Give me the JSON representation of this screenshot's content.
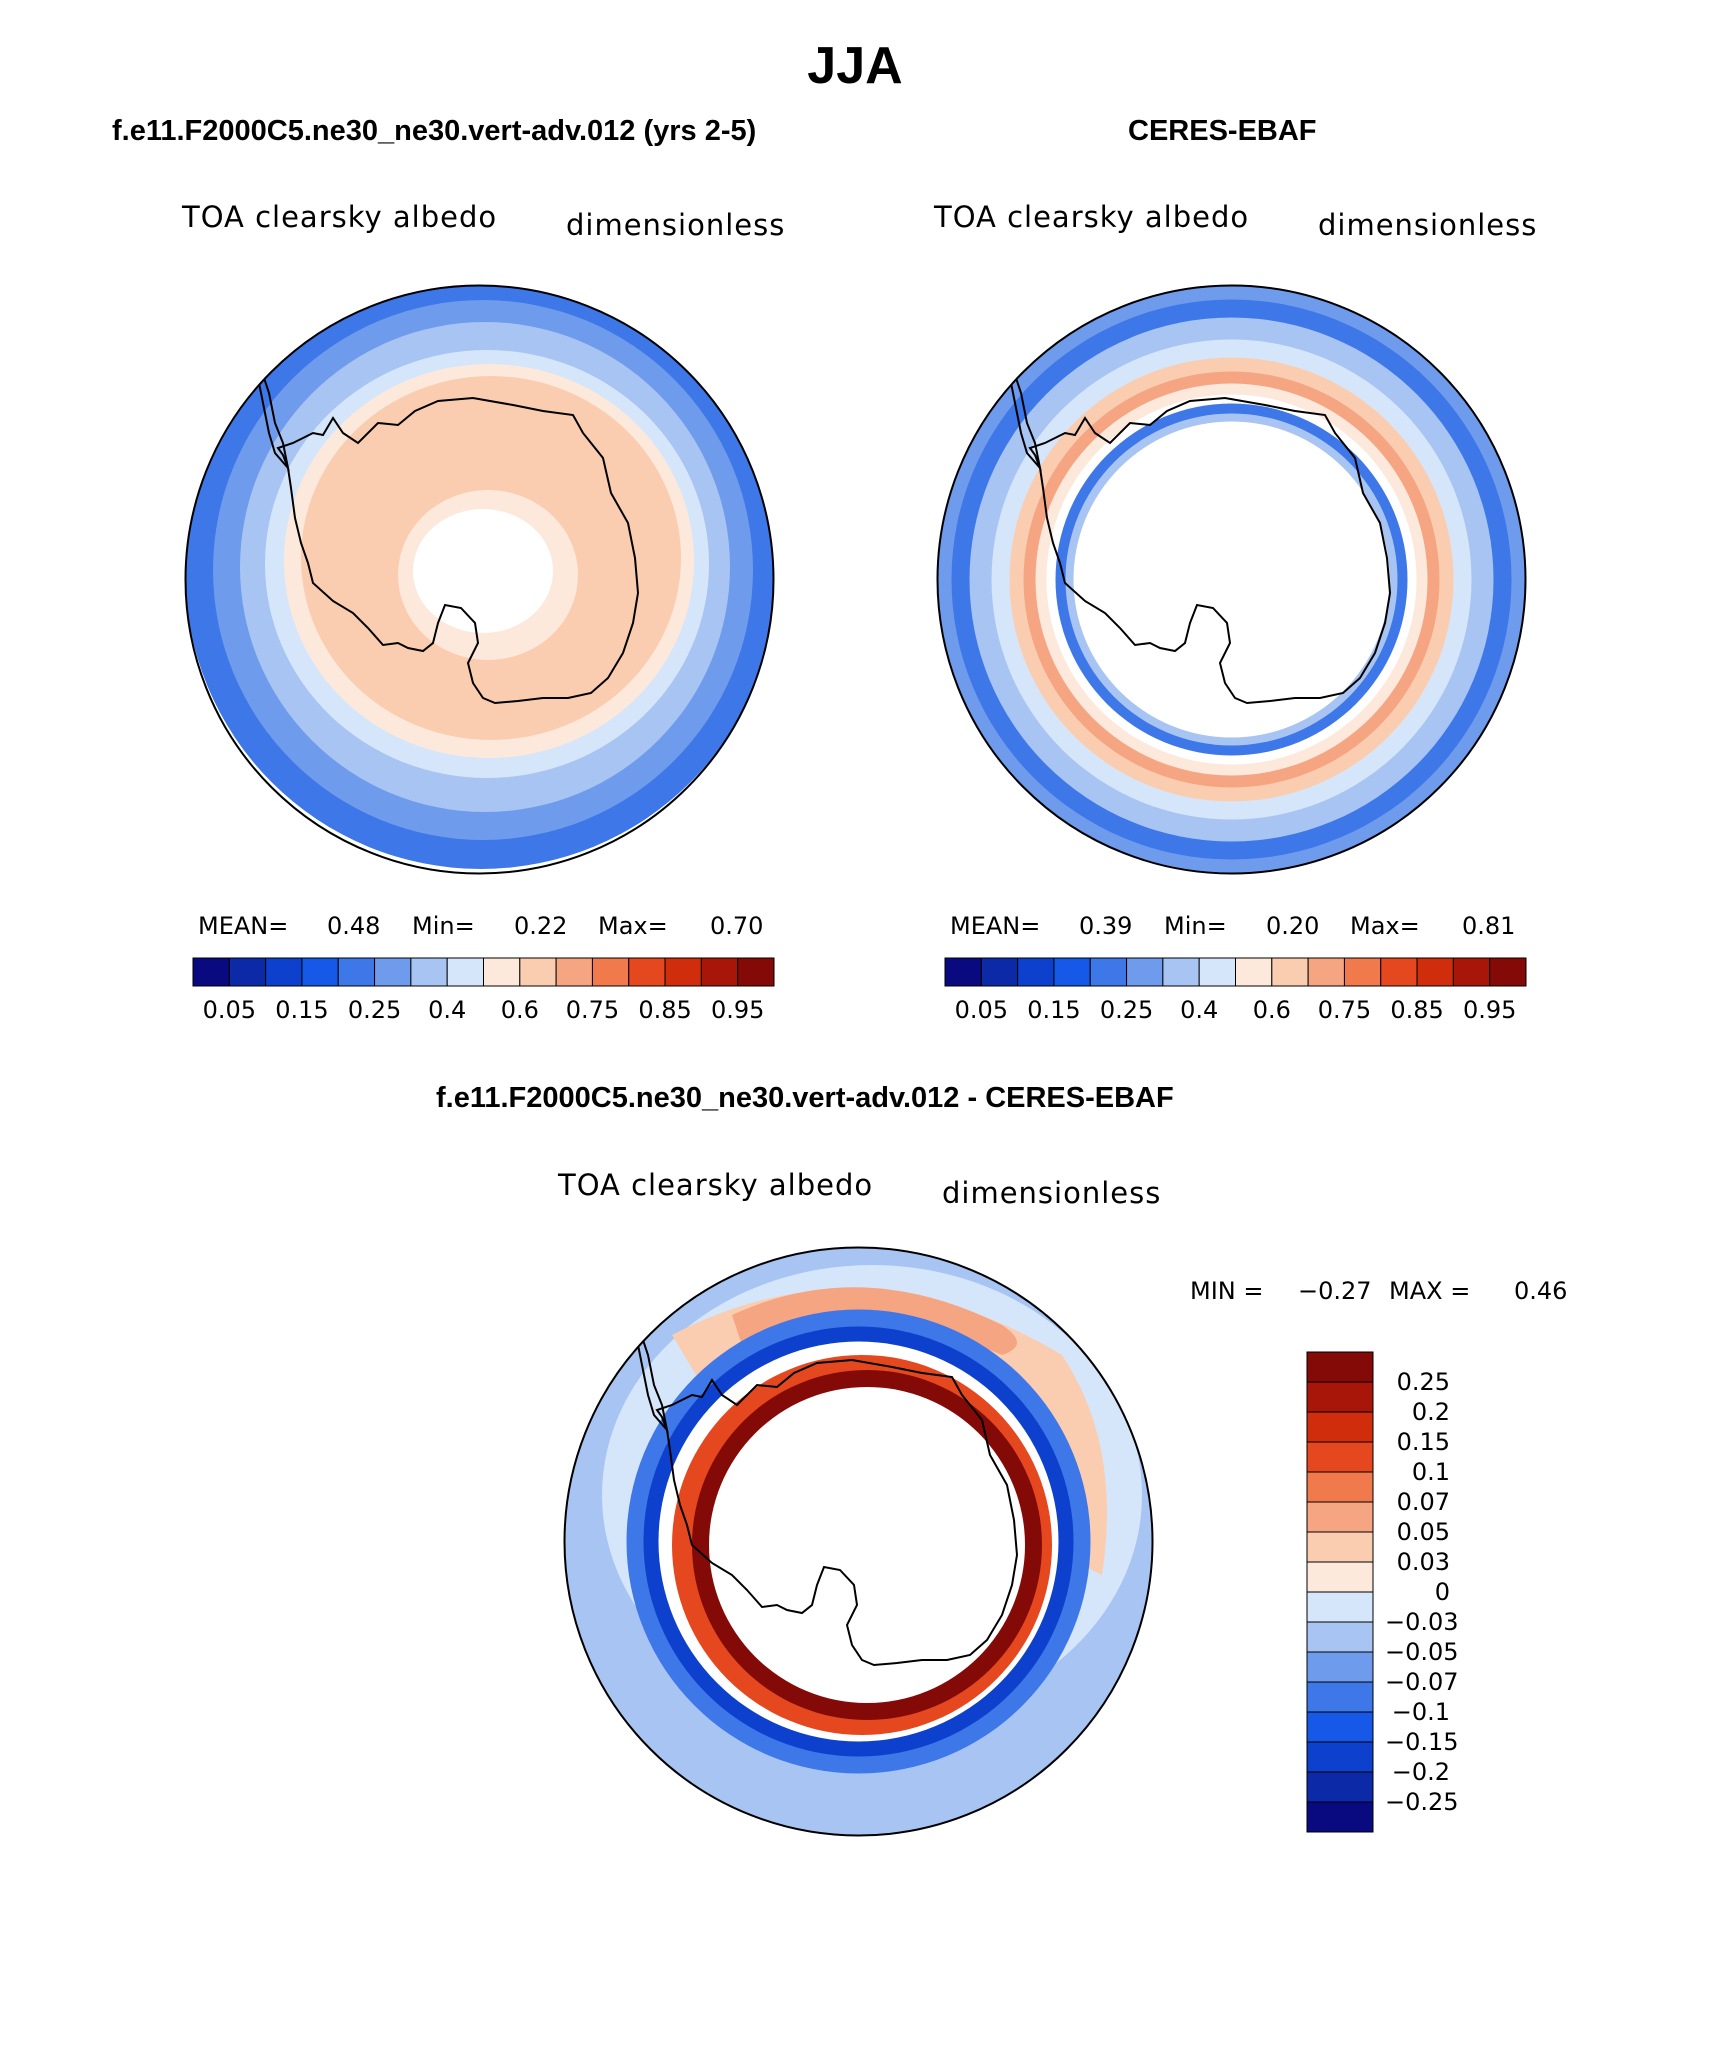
{
  "figure": {
    "season": "JJA",
    "colors": {
      "scale": [
        "#0a0a80",
        "#0c2aa8",
        "#0d40cc",
        "#1659e8",
        "#3d77e8",
        "#6e9bec",
        "#a8c4f2",
        "#d5e6fb",
        "#fde9dc",
        "#fbcdb0",
        "#f6a583",
        "#f07a4c",
        "#e5471f",
        "#cf2d0b",
        "#a8160a",
        "#840a08"
      ],
      "diff_scale": [
        "#0a0a80",
        "#0c2aa8",
        "#0d40cc",
        "#1659e8",
        "#3d77e8",
        "#6e9bec",
        "#a8c4f2",
        "#d5e6fb",
        "#fde9dc",
        "#fbcdb0",
        "#f6a583",
        "#f07a4c",
        "#e5471f",
        "#cf2d0b",
        "#a8160a",
        "#840a08"
      ]
    }
  },
  "panels": {
    "model": {
      "title": "f.e11.F2000C5.ne30_ne30.vert-adv.012 (yrs 2-5)",
      "var_name": "TOA clearsky albedo",
      "units": "dimensionless",
      "mean_label": "MEAN=",
      "mean_value": "0.48",
      "min_label": "Min=",
      "min_value": "0.22",
      "max_label": "Max=",
      "max_value": "0.70",
      "colorbar_ticks": [
        "0.05",
        "0.15",
        "0.25",
        "0.4",
        "0.6",
        "0.75",
        "0.85",
        "0.95"
      ],
      "map": {
        "ocean_bands": [
          "#3d77e8",
          "#6e9bec",
          "#a8c4f2",
          "#d5e6fb",
          "#fde9dc",
          "#fbcdb0"
        ],
        "pole_hole": "#ffffff"
      }
    },
    "obs": {
      "title": "CERES-EBAF",
      "var_name": "TOA clearsky albedo",
      "units": "dimensionless",
      "mean_label": "MEAN=",
      "mean_value": "0.39",
      "min_label": "Min=",
      "min_value": "0.20",
      "max_label": "Max=",
      "max_value": "0.81",
      "colorbar_ticks": [
        "0.05",
        "0.15",
        "0.25",
        "0.4",
        "0.6",
        "0.75",
        "0.85",
        "0.95"
      ]
    },
    "diff": {
      "title": "f.e11.F2000C5.ne30_ne30.vert-adv.012 - CERES-EBAF",
      "var_name": "TOA clearsky albedo",
      "units": "dimensionless",
      "min_label": "MIN =",
      "min_value": "−0.27",
      "max_label": "MAX =",
      "max_value": "0.46",
      "colorbar_ticks": [
        "0.25",
        "0.2",
        "0.15",
        "0.1",
        "0.07",
        "0.05",
        "0.03",
        "0",
        "−0.03",
        "−0.05",
        "−0.07",
        "−0.1",
        "−0.15",
        "−0.2",
        "−0.25"
      ]
    }
  }
}
